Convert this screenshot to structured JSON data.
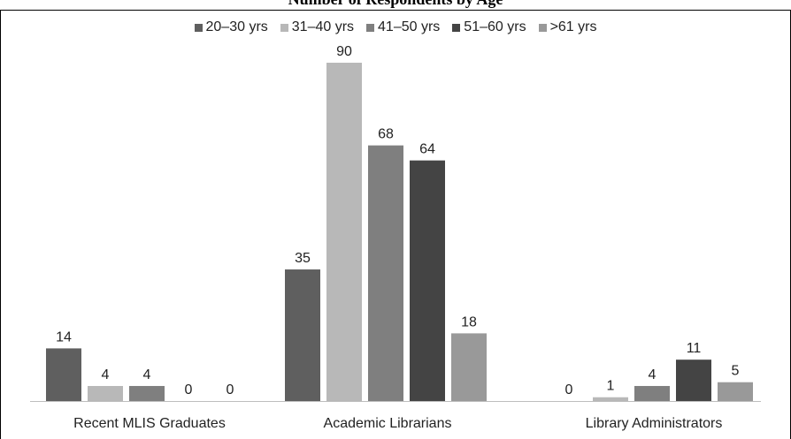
{
  "title": "Number of Respondents by Age",
  "chart_data": {
    "type": "bar",
    "title": "Number of Respondents by Age",
    "xlabel": "",
    "ylabel": "",
    "categories": [
      "Recent MLIS Graduates",
      "Academic Librarians",
      "Library Administrators"
    ],
    "series": [
      {
        "name": "20–30 yrs",
        "color": "#5f5f5f",
        "values": [
          14,
          35,
          0
        ]
      },
      {
        "name": "31–40 yrs",
        "color": "#b8b8b8",
        "values": [
          4,
          90,
          1
        ]
      },
      {
        "name": "41–50 yrs",
        "color": "#7f7f7f",
        "values": [
          4,
          68,
          4
        ]
      },
      {
        "name": "51–60 yrs",
        "color": "#444444",
        "values": [
          0,
          64,
          11
        ]
      },
      {
        "name": ">61 yrs",
        "color": "#999999",
        "values": [
          0,
          18,
          5
        ]
      }
    ],
    "ylim": [
      0,
      90
    ],
    "grid": false,
    "legend_position": "top",
    "data_labels": true
  }
}
